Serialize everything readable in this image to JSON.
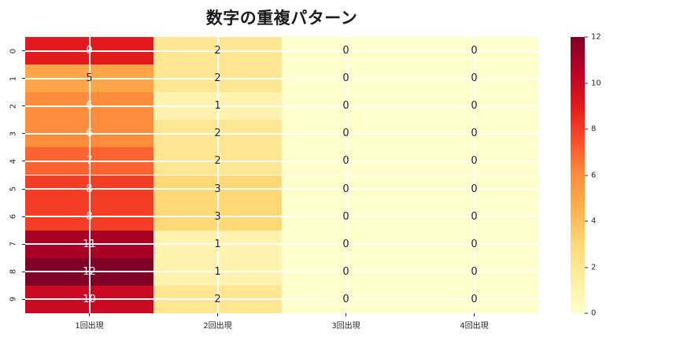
{
  "title": "数字の重複パターン",
  "colors": {
    "background": "#ffffff",
    "gridline": "#ffffff",
    "tick_label": "#262626",
    "annotation_dark": "#262626",
    "annotation_light": "#ffffff"
  },
  "chart_data": {
    "type": "heatmap",
    "title": "数字の重複パターン",
    "row_labels": [
      "0",
      "1",
      "2",
      "3",
      "4",
      "5",
      "6",
      "7",
      "8",
      "9"
    ],
    "col_labels": [
      "1回出現",
      "2回出現",
      "3回出現",
      "4回出現"
    ],
    "values": [
      [
        9,
        2,
        0,
        0
      ],
      [
        5,
        2,
        0,
        0
      ],
      [
        6,
        1,
        0,
        0
      ],
      [
        6,
        2,
        0,
        0
      ],
      [
        7,
        2,
        0,
        0
      ],
      [
        8,
        3,
        0,
        0
      ],
      [
        8,
        3,
        0,
        0
      ],
      [
        11,
        1,
        0,
        0
      ],
      [
        12,
        1,
        0,
        0
      ],
      [
        10,
        2,
        0,
        0
      ]
    ],
    "vmin": 0,
    "vmax": 12,
    "annotated": true,
    "grid": "white lines at tick centers",
    "legend_position": "right-colorbar",
    "colorbar_ticks": [
      0,
      2,
      4,
      6,
      8,
      10,
      12
    ],
    "colormap": {
      "name": "YlOrRd",
      "stops": [
        {
          "pos": 0.0,
          "color": "#ffffcc"
        },
        {
          "pos": 0.125,
          "color": "#ffeda0"
        },
        {
          "pos": 0.25,
          "color": "#fed976"
        },
        {
          "pos": 0.375,
          "color": "#feb24c"
        },
        {
          "pos": 0.5,
          "color": "#fd8d3c"
        },
        {
          "pos": 0.625,
          "color": "#fc4e2a"
        },
        {
          "pos": 0.75,
          "color": "#e31a1c"
        },
        {
          "pos": 0.875,
          "color": "#bd0026"
        },
        {
          "pos": 1.0,
          "color": "#800026"
        }
      ]
    }
  }
}
